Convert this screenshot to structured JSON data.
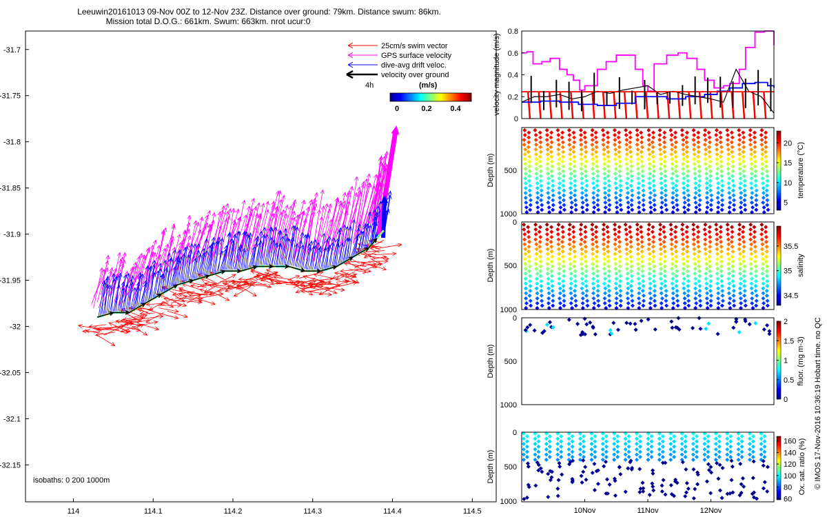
{
  "header": {
    "line1": "Leeuwin20161013 09-Nov 00Z to 12-Nov 23Z. Distance over ground: 79km. Distance swum: 86km.",
    "line2": "Mission total D.O.G.: 661km. Swum: 663km. nrot ucur:0"
  },
  "colors": {
    "swim": "#ff0000",
    "gps": "#ff00ff",
    "drift": "#0000ff",
    "ground": "#000000"
  },
  "chart_data": [
    {
      "type": "scatter",
      "name": "map",
      "xlim": [
        113.94,
        114.53
      ],
      "ylim": [
        -32.19,
        -31.68
      ],
      "xticks": [
        "114",
        "114.1",
        "114.2",
        "114.3",
        "114.4",
        "114.5"
      ],
      "yticks": [
        "-31.7",
        "-31.75",
        "-31.8",
        "-31.85",
        "-31.9",
        "-31.95",
        "-32",
        "-32.05",
        "-32.1",
        "-32.15"
      ],
      "legend": {
        "placement": "top-right",
        "items": [
          "25cm/s swim vector",
          "GPS surface velocity",
          "dive-avg drift veloc.",
          "velocity over ground"
        ],
        "duration_label": "4h"
      },
      "colorbar": {
        "title": "(m/s)",
        "ticks": [
          "0",
          "0.2",
          "0.4"
        ],
        "range": [
          0,
          0.5
        ]
      },
      "footnote": "isobaths: 0   200   1000m",
      "track": [
        [
          114.03,
          -31.99
        ],
        [
          114.05,
          -31.985
        ],
        [
          114.07,
          -31.985
        ],
        [
          114.09,
          -31.975
        ],
        [
          114.11,
          -31.965
        ],
        [
          114.13,
          -31.955
        ],
        [
          114.15,
          -31.95
        ],
        [
          114.17,
          -31.945
        ],
        [
          114.19,
          -31.94
        ],
        [
          114.21,
          -31.94
        ],
        [
          114.23,
          -31.935
        ],
        [
          114.25,
          -31.935
        ],
        [
          114.27,
          -31.935
        ],
        [
          114.29,
          -31.94
        ],
        [
          114.31,
          -31.94
        ],
        [
          114.33,
          -31.935
        ],
        [
          114.35,
          -31.925
        ],
        [
          114.37,
          -31.915
        ],
        [
          114.38,
          -31.905
        ],
        [
          114.39,
          -31.895
        ]
      ]
    },
    {
      "type": "line",
      "name": "velocity",
      "ylabel": "velocity magnitude (m/s)",
      "ylim": [
        0,
        0.8
      ],
      "yticks": [
        "0",
        "0.2",
        "0.4",
        "0.6",
        "0.8"
      ],
      "x_days": [
        0,
        4
      ],
      "series": [
        {
          "color": "#ff00ff",
          "x": [
            0,
            0.08,
            0.18,
            0.32,
            0.45,
            0.6,
            0.72,
            0.82,
            0.92,
            1.0,
            1.2,
            1.34,
            1.5,
            1.64,
            1.8,
            1.92,
            2.0,
            2.1,
            2.3,
            2.48,
            2.62,
            2.78,
            2.9,
            3.05,
            3.2,
            3.3,
            3.45,
            3.55,
            3.7,
            3.85,
            3.95,
            4.0
          ],
          "y": [
            0.6,
            0.61,
            0.5,
            0.52,
            0.55,
            0.45,
            0.4,
            0.35,
            0.26,
            0.3,
            0.45,
            0.52,
            0.58,
            0.58,
            0.45,
            0.3,
            0.25,
            0.5,
            0.58,
            0.6,
            0.55,
            0.45,
            0.35,
            0.28,
            0.3,
            0.32,
            0.45,
            0.65,
            0.79,
            0.8,
            0.8,
            0.67
          ]
        },
        {
          "color": "#0000ff",
          "x": [
            0,
            0.3,
            0.6,
            0.9,
            1.2,
            1.5,
            1.8,
            2.0,
            2.3,
            2.6,
            2.9,
            3.1,
            3.3,
            3.5,
            3.7,
            3.9,
            4.0
          ],
          "y": [
            0.15,
            0.16,
            0.15,
            0.13,
            0.12,
            0.14,
            0.2,
            0.2,
            0.18,
            0.2,
            0.22,
            0.25,
            0.28,
            0.32,
            0.33,
            0.3,
            0.28
          ]
        },
        {
          "color": "#000000",
          "x": [
            0,
            0.2,
            0.4,
            0.6,
            0.8,
            1.0,
            1.2,
            1.4,
            1.6,
            1.8,
            2.0,
            2.2,
            2.4,
            2.6,
            2.8,
            3.0,
            3.2,
            3.4,
            3.6,
            3.8,
            4.0
          ],
          "y": [
            0.15,
            0.2,
            0.2,
            0.22,
            0.18,
            0.2,
            0.25,
            0.23,
            0.26,
            0.28,
            0.3,
            0.22,
            0.25,
            0.22,
            0.2,
            0.18,
            0.15,
            0.45,
            0.25,
            0.2,
            0.05
          ]
        },
        {
          "color": "#ff0000",
          "x": [
            0,
            4
          ],
          "y": [
            0.245,
            0.245
          ]
        }
      ]
    },
    {
      "type": "scatter",
      "name": "temperature",
      "ylabel": "Depth (m)",
      "yticks": [
        "500",
        "1000"
      ],
      "ylim": [
        0,
        1000
      ],
      "colorbar": {
        "label": "temperature (°C)",
        "ticks": [
          "5",
          "10",
          "15",
          "20"
        ],
        "range": [
          3,
          23
        ]
      }
    },
    {
      "type": "scatter",
      "name": "salinity",
      "ylabel": "Depth (m)",
      "yticks": [
        "0",
        "500",
        "1000"
      ],
      "ylim": [
        0,
        1000
      ],
      "colorbar": {
        "label": "salinity",
        "ticks": [
          "34.5",
          "35",
          "35.5"
        ],
        "range": [
          34.3,
          35.9
        ]
      }
    },
    {
      "type": "scatter",
      "name": "fluorescence",
      "ylabel": "Depth (m)",
      "yticks": [
        "0",
        "500",
        "1000"
      ],
      "ylim": [
        0,
        1000
      ],
      "colorbar": {
        "label": "fluor. (mg m-3)",
        "ticks": [
          "0",
          "0.5",
          "1",
          "1.5",
          "2"
        ],
        "range": [
          0,
          2
        ]
      }
    },
    {
      "type": "scatter",
      "name": "oxygen",
      "ylabel": "Depth (m)",
      "yticks": [
        "0",
        "500",
        "1000"
      ],
      "ylim": [
        0,
        1000
      ],
      "xticks": [
        "10Nov",
        "11Nov",
        "12Nov"
      ],
      "colorbar": {
        "label": "Ox. sat. ratio (%)",
        "ticks": [
          "60",
          "80",
          "100",
          "120",
          "140",
          "160"
        ],
        "range": [
          58,
          168
        ]
      }
    }
  ],
  "side_note": "© IMOS 17-Nov-2016 10:36:19 Hobart time. no QC"
}
